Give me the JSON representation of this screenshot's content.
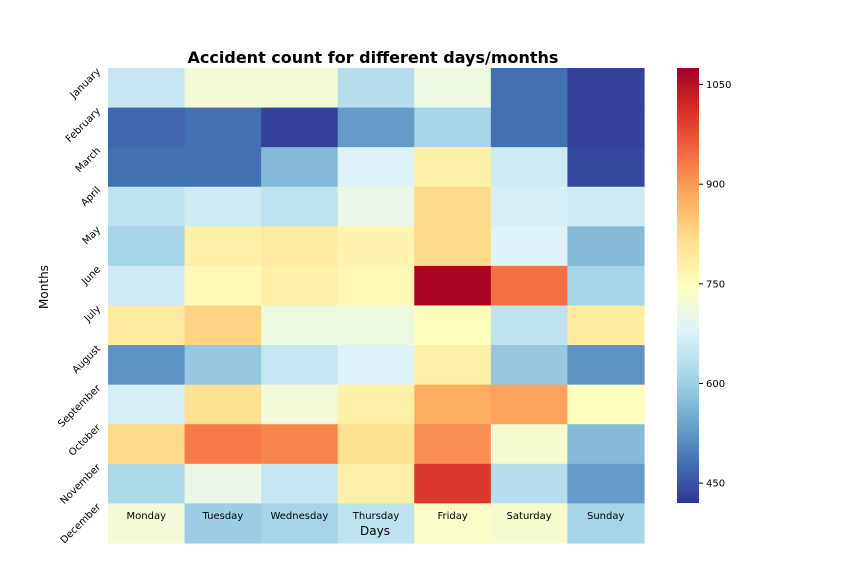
{
  "chart_data": {
    "type": "heatmap",
    "title": "Accident count for different days/months",
    "xlabel": "Days",
    "ylabel": "Months",
    "x_categories": [
      "Monday",
      "Tuesday",
      "Wednesday",
      "Thursday",
      "Friday",
      "Saturday",
      "Sunday"
    ],
    "y_categories": [
      "January",
      "February",
      "March",
      "April",
      "May",
      "June",
      "July",
      "August",
      "September",
      "October",
      "November",
      "December"
    ],
    "values": [
      [
        650,
        720,
        720,
        630,
        710,
        480,
        430
      ],
      [
        470,
        480,
        430,
        530,
        610,
        480,
        430
      ],
      [
        480,
        480,
        570,
        680,
        780,
        660,
        440
      ],
      [
        640,
        660,
        640,
        700,
        820,
        670,
        660
      ],
      [
        610,
        780,
        790,
        770,
        820,
        680,
        570
      ],
      [
        660,
        760,
        780,
        760,
        1070,
        940,
        610
      ],
      [
        790,
        830,
        710,
        710,
        750,
        640,
        790
      ],
      [
        520,
        590,
        650,
        680,
        780,
        590,
        520
      ],
      [
        670,
        810,
        720,
        780,
        880,
        890,
        750
      ],
      [
        820,
        930,
        920,
        810,
        910,
        730,
        570
      ],
      [
        620,
        700,
        650,
        780,
        1000,
        630,
        530
      ],
      [
        720,
        600,
        610,
        640,
        740,
        730,
        610
      ]
    ],
    "colorbar": {
      "colormap": "RdYlBu_r",
      "range": [
        420,
        1075
      ],
      "ticks": [
        450,
        600,
        750,
        900,
        1050
      ],
      "tick_labels": [
        "450",
        "600",
        "750",
        "900",
        "1050"
      ]
    }
  }
}
